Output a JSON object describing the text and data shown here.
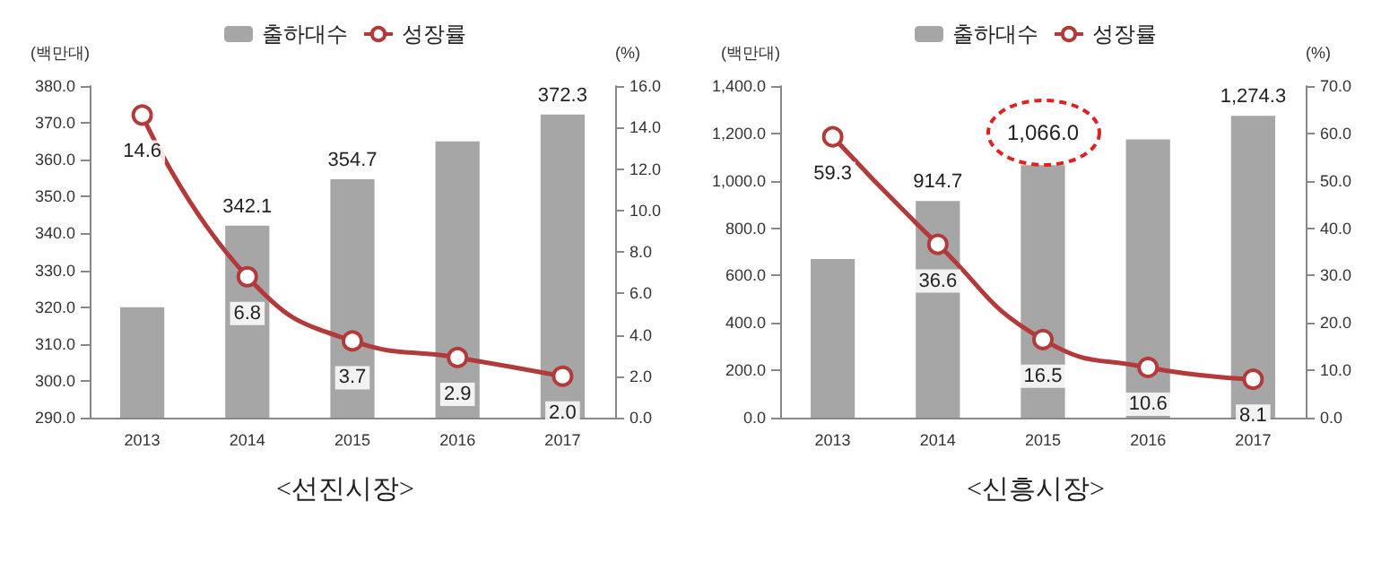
{
  "chart_data": [
    {
      "type": "bar",
      "title": "<선진시장>",
      "ylabel": "(백만대)",
      "y2label": "(%)",
      "legend": "top",
      "marker": "circle",
      "categories": [
        "2013",
        "2014",
        "2015",
        "2016",
        "2017"
      ],
      "ylim": [
        290,
        380
      ],
      "yticks": [
        {
          "value": 290,
          "label": "290.0"
        },
        {
          "value": 300,
          "label": "300.0"
        },
        {
          "value": 310,
          "label": "310.0"
        },
        {
          "value": 320,
          "label": "320.0"
        },
        {
          "value": 330,
          "label": "330.0"
        },
        {
          "value": 340,
          "label": "340.0"
        },
        {
          "value": 350,
          "label": "350.0"
        },
        {
          "value": 360,
          "label": "360.0"
        },
        {
          "value": 370,
          "label": "370.0"
        },
        {
          "value": 380,
          "label": "380.0"
        }
      ],
      "y2lim": [
        0,
        16
      ],
      "y2ticks": [
        {
          "value": 0,
          "label": "0.0"
        },
        {
          "value": 2,
          "label": "2.0"
        },
        {
          "value": 4,
          "label": "4.0"
        },
        {
          "value": 6,
          "label": "6.0"
        },
        {
          "value": 8,
          "label": "8.0"
        },
        {
          "value": 10,
          "label": "10.0"
        },
        {
          "value": 12,
          "label": "12.0"
        },
        {
          "value": 14,
          "label": "14.0"
        },
        {
          "value": 16,
          "label": "16.0"
        }
      ],
      "series": [
        {
          "name": "출하대수",
          "color": "#a6a6a6",
          "values": [
            320,
            342.1,
            354.7,
            365,
            372.3
          ],
          "value_labels": [
            null,
            "342.1",
            "354.7",
            null,
            "372.3"
          ]
        },
        {
          "name": "성장률",
          "type": "line",
          "axis": "y2",
          "color": "#b23a3a",
          "values": [
            14.6,
            6.8,
            3.7,
            2.9,
            2.0
          ],
          "value_labels": [
            "14.6",
            "6.8",
            "3.7",
            "2.9",
            "2.0"
          ]
        }
      ]
    },
    {
      "type": "bar",
      "title": "<신흥시장>",
      "ylabel": "(백만대)",
      "y2label": "(%)",
      "legend": "top",
      "marker": "circle",
      "categories": [
        "2013",
        "2014",
        "2015",
        "2016",
        "2017"
      ],
      "ylim": [
        0,
        1400
      ],
      "yticks": [
        {
          "value": 0,
          "label": "0.0"
        },
        {
          "value": 200,
          "label": "200.0"
        },
        {
          "value": 400,
          "label": "400.0"
        },
        {
          "value": 600,
          "label": "600.0"
        },
        {
          "value": 800,
          "label": "800.0"
        },
        {
          "value": 1000,
          "label": "1,000.0"
        },
        {
          "value": 1200,
          "label": "1,200.0"
        },
        {
          "value": 1400,
          "label": "1,400.0"
        }
      ],
      "y2lim": [
        0,
        70
      ],
      "y2ticks": [
        {
          "value": 0,
          "label": "0.0"
        },
        {
          "value": 10,
          "label": "10.0"
        },
        {
          "value": 20,
          "label": "20.0"
        },
        {
          "value": 30,
          "label": "30.0"
        },
        {
          "value": 40,
          "label": "40.0"
        },
        {
          "value": 50,
          "label": "50.0"
        },
        {
          "value": 60,
          "label": "60.0"
        },
        {
          "value": 70,
          "label": "70.0"
        }
      ],
      "annotations": [
        {
          "text": "1,066.0",
          "x": "2015",
          "y": 1066
        }
      ],
      "series": [
        {
          "name": "출하대수",
          "color": "#a6a6a6",
          "values": [
            670,
            914.7,
            1066,
            1175,
            1274.3
          ],
          "value_labels": [
            null,
            "914.7",
            null,
            null,
            "1,274.3"
          ]
        },
        {
          "name": "성장률",
          "type": "line",
          "axis": "y2",
          "color": "#b23a3a",
          "values": [
            59.3,
            36.6,
            16.5,
            10.6,
            8.1
          ],
          "value_labels": [
            "59.3",
            "36.6",
            "16.5",
            "10.6",
            "8.1"
          ]
        }
      ]
    }
  ]
}
